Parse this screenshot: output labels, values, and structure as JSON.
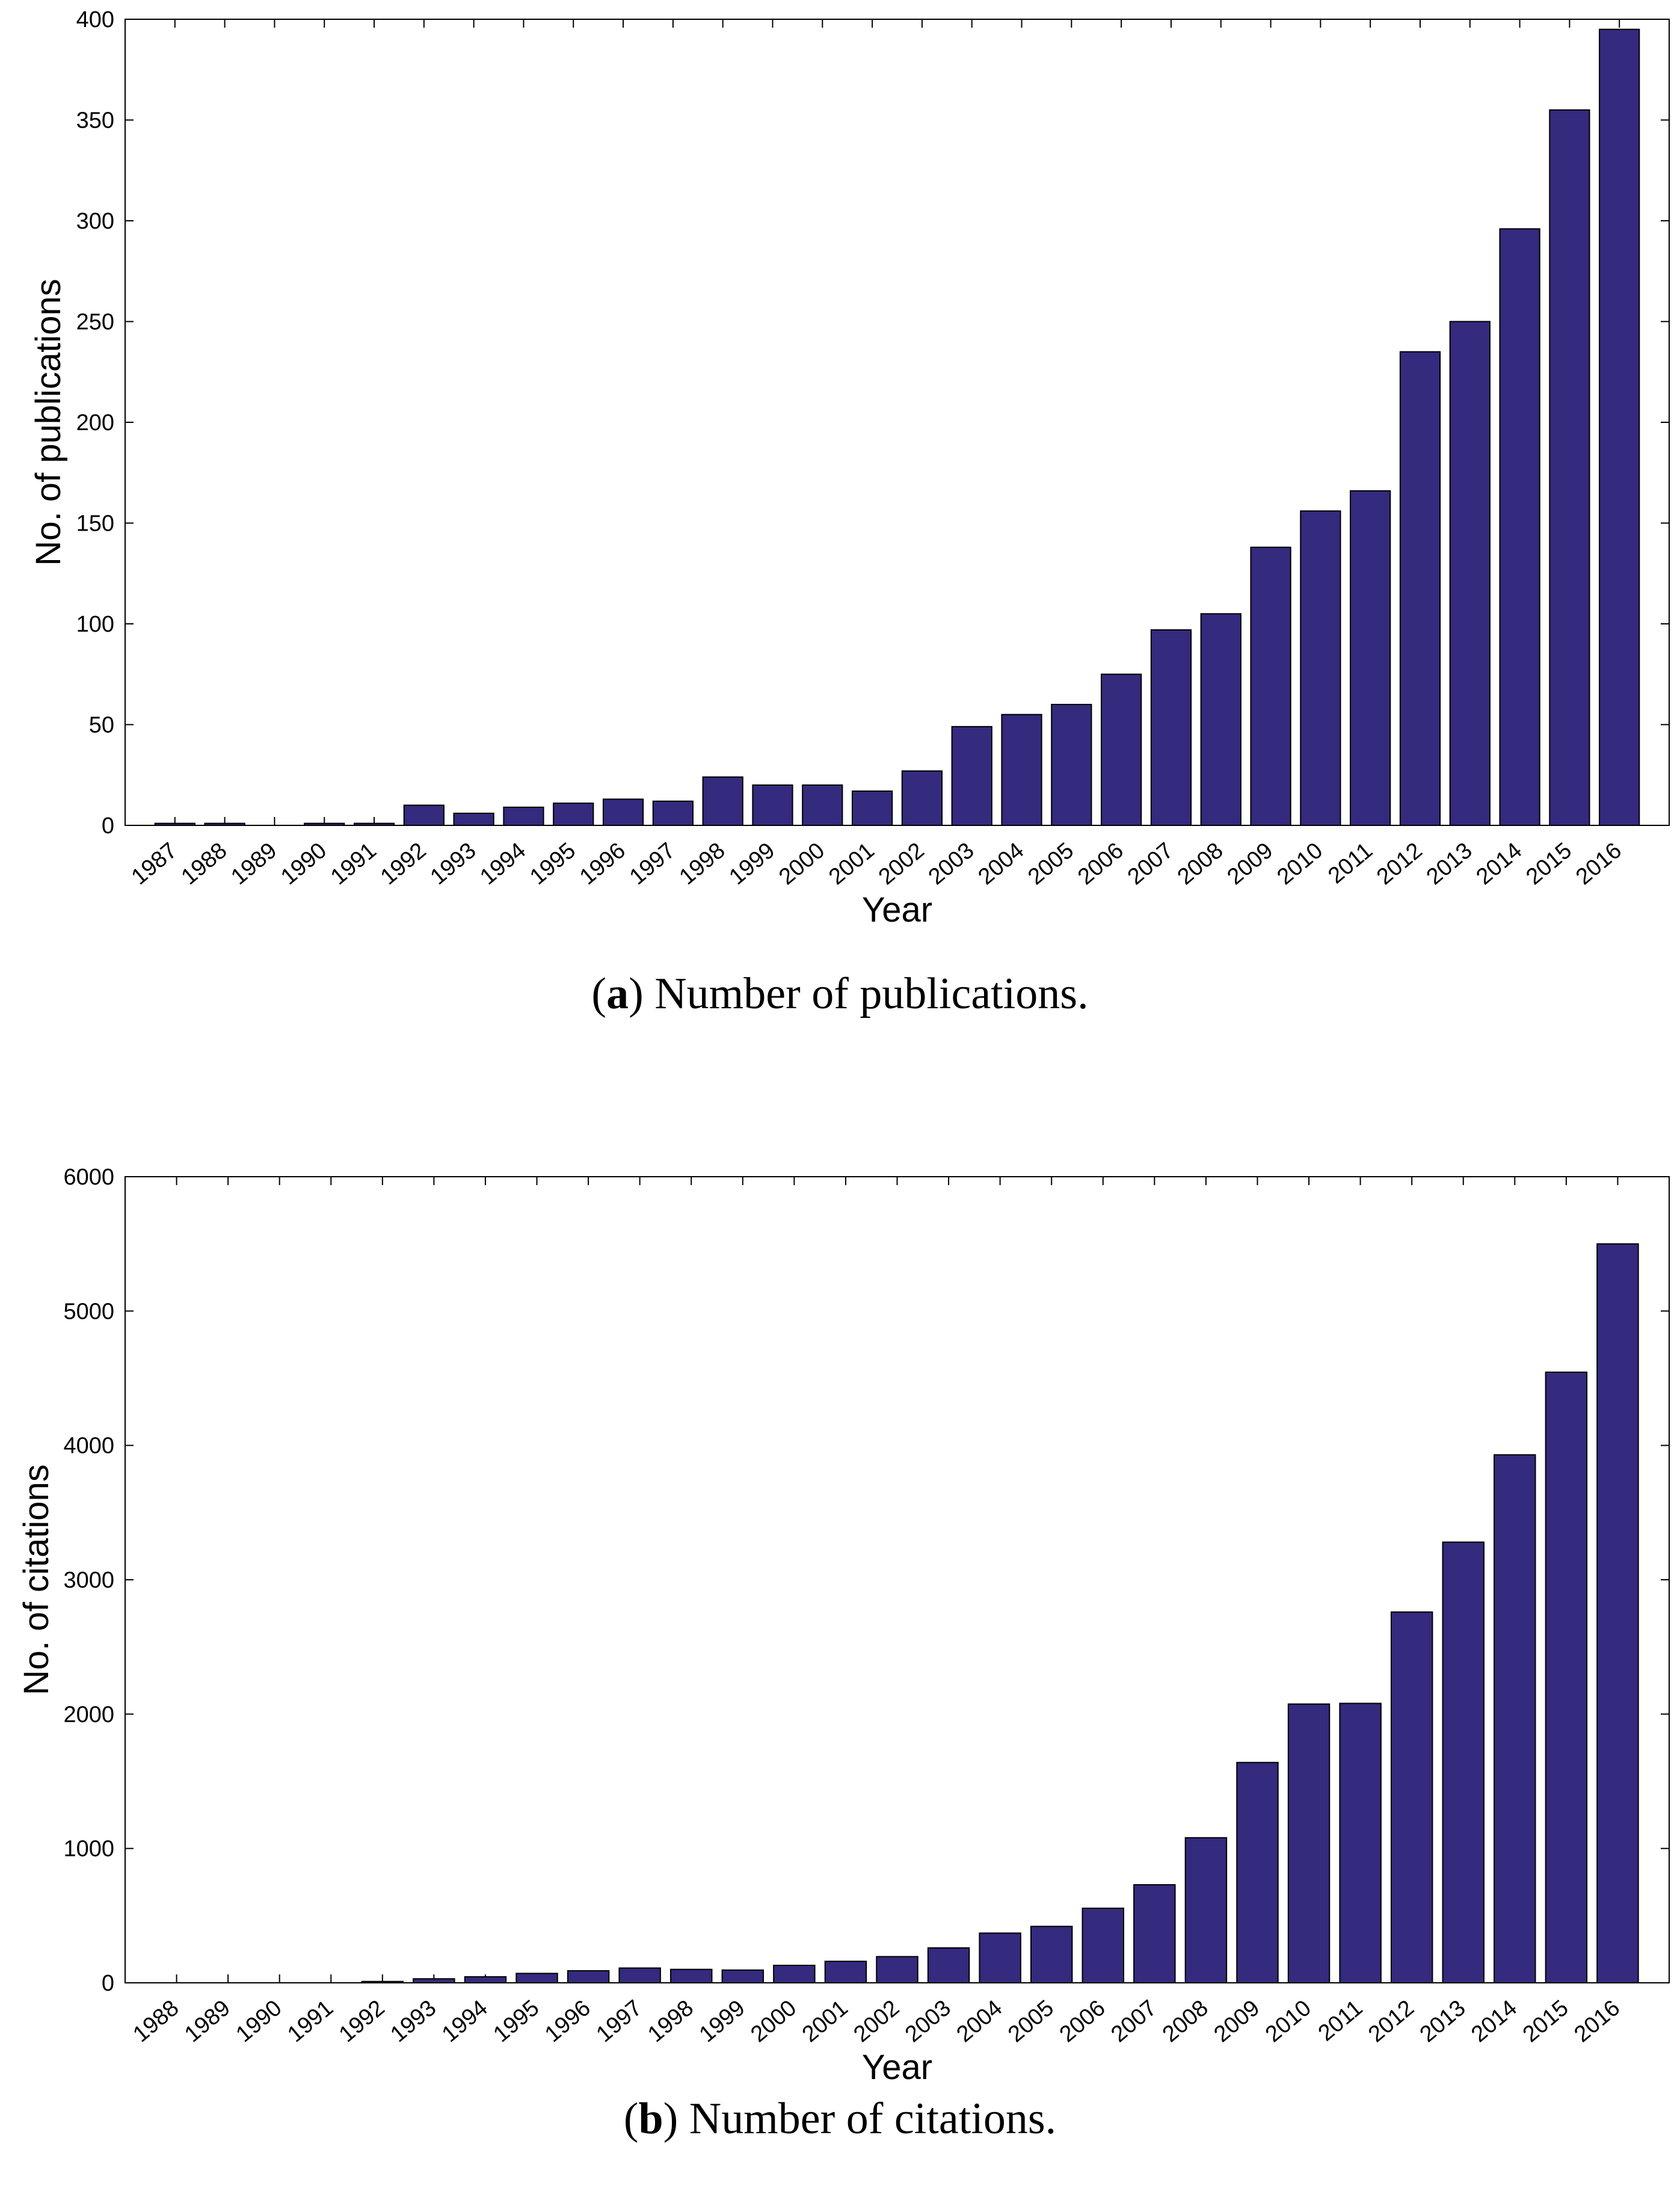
{
  "colors": {
    "bar": "#342A7E",
    "axis": "#000000",
    "background": "#ffffff"
  },
  "chart_data": [
    {
      "type": "bar",
      "id": "a",
      "title": "",
      "xlabel": "Year",
      "ylabel": "No. of publications",
      "ylim": [
        0,
        400
      ],
      "yticks": [
        0,
        50,
        100,
        150,
        200,
        250,
        300,
        350,
        400
      ],
      "grid": false,
      "categories": [
        "1987",
        "1988",
        "1989",
        "1990",
        "1991",
        "1992",
        "1993",
        "1994",
        "1995",
        "1996",
        "1997",
        "1998",
        "1999",
        "2000",
        "2001",
        "2002",
        "2003",
        "2004",
        "2005",
        "2006",
        "2007",
        "2008",
        "2009",
        "2010",
        "2011",
        "2012",
        "2013",
        "2014",
        "2015",
        "2016"
      ],
      "values": [
        1,
        1,
        0,
        1,
        1,
        10,
        6,
        9,
        11,
        13,
        12,
        24,
        20,
        20,
        17,
        27,
        49,
        55,
        60,
        75,
        97,
        105,
        138,
        156,
        166,
        235,
        250,
        296,
        355,
        395
      ],
      "caption_label": "a",
      "caption_text": " Number of publications."
    },
    {
      "type": "bar",
      "id": "b",
      "title": "",
      "xlabel": "Year",
      "ylabel": "No. of citations",
      "ylim": [
        0,
        6000
      ],
      "yticks": [
        0,
        1000,
        2000,
        3000,
        4000,
        5000,
        6000
      ],
      "grid": false,
      "categories": [
        "1988",
        "1989",
        "1990",
        "1991",
        "1992",
        "1993",
        "1994",
        "1995",
        "1996",
        "1997",
        "1998",
        "1999",
        "2000",
        "2001",
        "2002",
        "2003",
        "2004",
        "2005",
        "2006",
        "2007",
        "2008",
        "2009",
        "2010",
        "2011",
        "2012",
        "2013",
        "2014",
        "2015",
        "2016"
      ],
      "values": [
        0,
        0,
        0,
        0,
        10,
        30,
        45,
        70,
        90,
        110,
        100,
        95,
        130,
        160,
        195,
        260,
        370,
        420,
        555,
        730,
        1080,
        1640,
        2075,
        2080,
        2760,
        3280,
        3930,
        4545,
        5500
      ],
      "caption_label": "b",
      "caption_text": " Number of citations."
    }
  ]
}
